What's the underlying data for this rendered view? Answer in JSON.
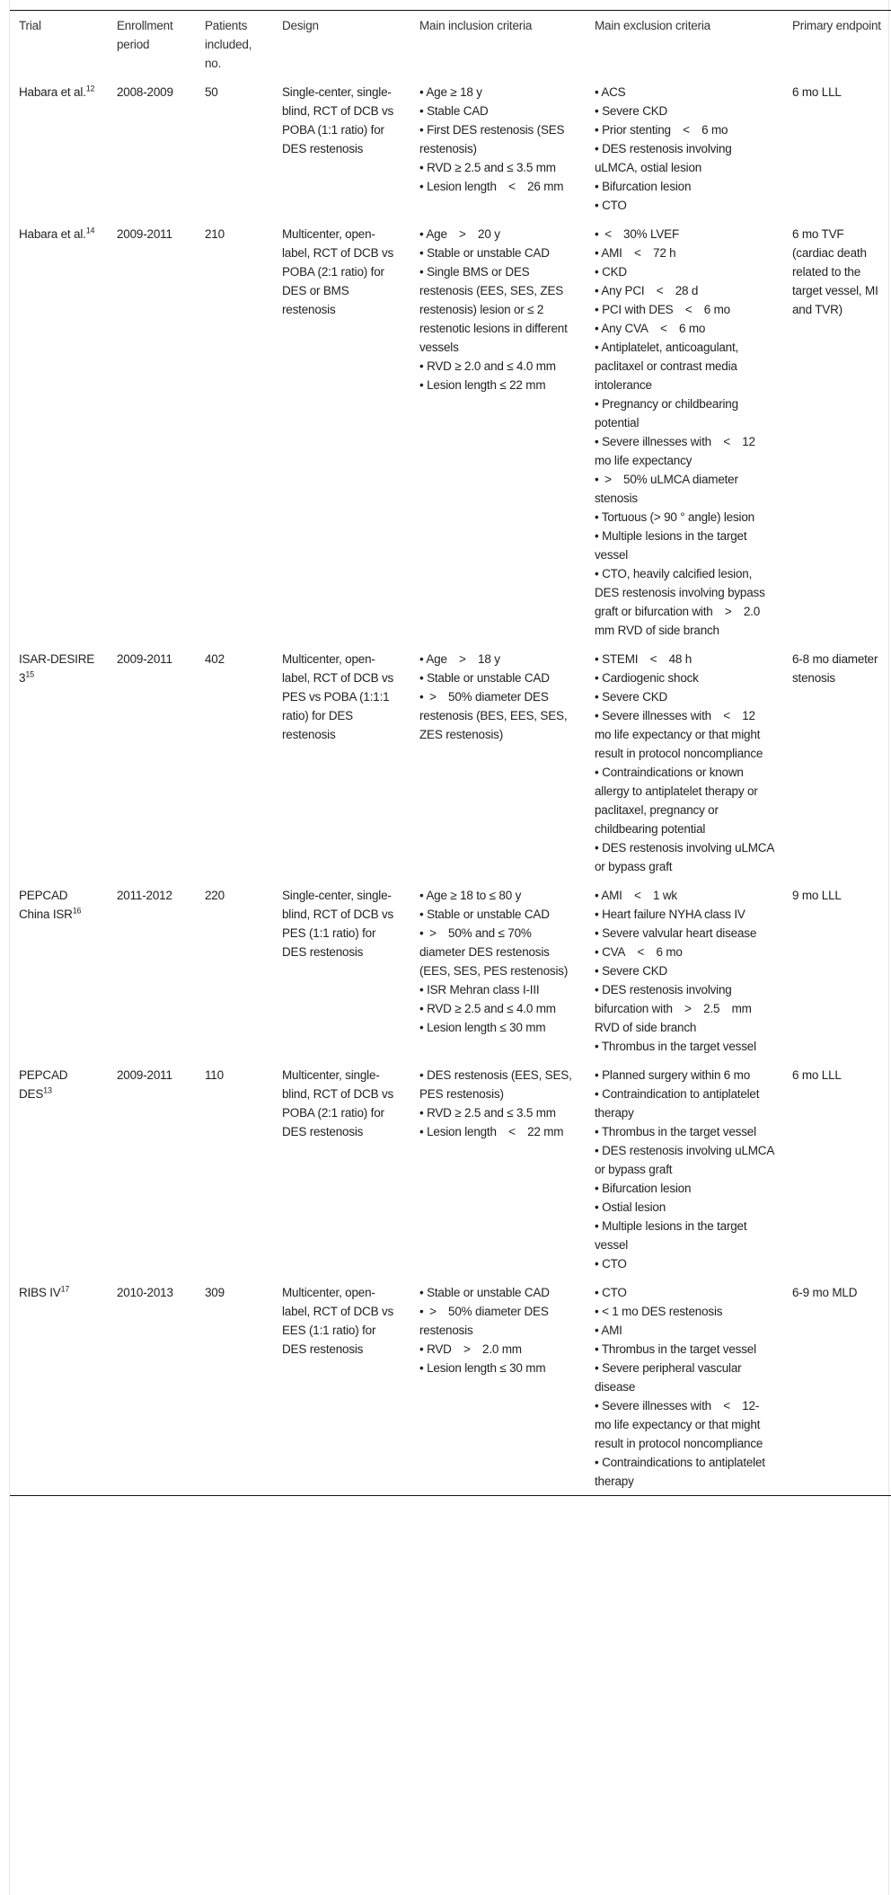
{
  "headers": [
    "Trial",
    "Enrollment period",
    "Patients included, no.",
    "Design",
    "Main inclusion criteria",
    "Main exclusion criteria",
    "Primary endpoint"
  ],
  "rows": [
    {
      "trial": "Habara et al.",
      "ref": "12",
      "period": "2008-2009",
      "patients": "50",
      "design": "Single-center, single-blind, RCT of DCB vs POBA (1:1 ratio) for DES restenosis",
      "inclusion": [
        "• Age ≥ 18 y",
        "• Stable CAD",
        "• First DES restenosis (SES restenosis)",
        "• RVD ≥ 2.5 and ≤ 3.5 mm",
        "• Lesion length < 26 mm"
      ],
      "exclusion": [
        "• ACS",
        "• Severe CKD",
        "• Prior stenting < 6 mo",
        "• DES restenosis involving uLMCA, ostial lesion",
        "• Bifurcation lesion",
        "• CTO"
      ],
      "endpoint": "6 mo LLL"
    },
    {
      "trial": "Habara et al.",
      "ref": "14",
      "period": "2009-2011",
      "patients": "210",
      "design": "Multicenter, open-label, RCT of DCB vs POBA (2:1 ratio) for DES or BMS restenosis",
      "inclusion": [
        "• Age > 20 y",
        "• Stable or unstable CAD",
        "• Single BMS or DES restenosis (EES, SES, ZES restenosis) lesion or ≤ 2 restenotic lesions in different vessels",
        "• RVD ≥ 2.0 and ≤ 4.0 mm",
        "• Lesion length ≤ 22 mm"
      ],
      "exclusion": [
        "• < 30% LVEF",
        "• AMI < 72 h",
        "• CKD",
        "• Any PCI < 28 d",
        "• PCI with DES < 6 mo",
        "• Any CVA < 6 mo",
        "• Antiplatelet, anticoagulant, paclitaxel or contrast media intolerance",
        "• Pregnancy or childbearing potential",
        "• Severe illnesses with < 12 mo life expectancy",
        "• > 50% uLMCA diameter stenosis",
        "• Tortuous (> 90 ° angle) lesion",
        "• Multiple lesions in the target vessel",
        "• CTO, heavily calcified lesion, DES restenosis involving bypass graft or bifurcation with > 2.0 mm RVD of side branch"
      ],
      "endpoint": "6 mo TVF (cardiac death related to the target vessel, MI and TVR)"
    },
    {
      "trial": "ISAR-DESIRE 3",
      "ref": "15",
      "period": "2009-2011",
      "patients": "402",
      "design": "Multicenter, open-label, RCT of DCB vs PES vs POBA (1:1:1 ratio) for DES restenosis",
      "inclusion": [
        "• Age > 18 y",
        "• Stable or unstable CAD",
        "• > 50% diameter DES restenosis (BES, EES, SES, ZES restenosis)"
      ],
      "exclusion": [
        "• STEMI < 48 h",
        "• Cardiogenic shock",
        "• Severe CKD",
        "• Severe illnesses with < 12 mo life expectancy or that might result in protocol noncompliance",
        "• Contraindications or known allergy to antiplatelet therapy or paclitaxel, pregnancy or childbearing potential",
        "• DES restenosis involving uLMCA or bypass graft"
      ],
      "endpoint": "6-8 mo diameter stenosis"
    },
    {
      "trial": "PEPCAD China ISR",
      "ref": "16",
      "period": "2011-2012",
      "patients": "220",
      "design": "Single-center, single-blind, RCT of DCB vs PES (1:1 ratio) for DES restenosis",
      "inclusion": [
        "• Age ≥ 18 to ≤ 80 y",
        "• Stable or unstable CAD",
        "• > 50% and ≤ 70% diameter DES restenosis (EES, SES, PES restenosis)",
        "• ISR Mehran class I-III",
        "• RVD ≥ 2.5 and ≤ 4.0 mm",
        "• Lesion length ≤ 30 mm"
      ],
      "exclusion": [
        "• AMI < 1 wk",
        "• Heart failure NYHA class IV",
        "• Severe valvular heart disease",
        "• CVA < 6 mo",
        "• Severe CKD",
        "• DES restenosis involving bifurcation with > 2.5 mm RVD of side branch",
        "• Thrombus in the target vessel"
      ],
      "endpoint": "9 mo LLL"
    },
    {
      "trial": "PEPCAD DES",
      "ref": "13",
      "period": "2009-2011",
      "patients": "110",
      "design": "Multicenter, single-blind, RCT of DCB vs POBA (2:1 ratio) for DES restenosis",
      "inclusion": [
        "• DES restenosis (EES, SES, PES restenosis)",
        "• RVD ≥ 2.5 and ≤ 3.5 mm",
        "• Lesion length < 22 mm"
      ],
      "exclusion": [
        "• Planned surgery within 6 mo",
        "• Contraindication to antiplatelet therapy",
        "• Thrombus in the target vessel",
        "• DES restenosis involving uLMCA or bypass graft",
        "• Bifurcation lesion",
        "• Ostial lesion",
        "• Multiple lesions in the target vessel",
        "• CTO"
      ],
      "endpoint": "6 mo LLL"
    },
    {
      "trial": "RIBS IV",
      "ref": "17",
      "period": "2010-2013",
      "patients": "309",
      "design": "Multicenter, open-label, RCT of DCB vs EES (1:1 ratio) for DES restenosis",
      "inclusion": [
        "• Stable or unstable CAD",
        "• > 50% diameter DES restenosis",
        "• RVD > 2.0 mm",
        "• Lesion length ≤ 30 mm"
      ],
      "exclusion": [
        "• CTO",
        "• < 1 mo DES restenosis",
        "• AMI",
        "• Thrombus in the target vessel",
        "• Severe peripheral vascular disease",
        "• Severe illnesses with < 12-mo life expectancy or that might result in protocol noncompliance",
        "• Contraindications to antiplatelet therapy"
      ],
      "endpoint": "6-9 mo MLD"
    }
  ]
}
